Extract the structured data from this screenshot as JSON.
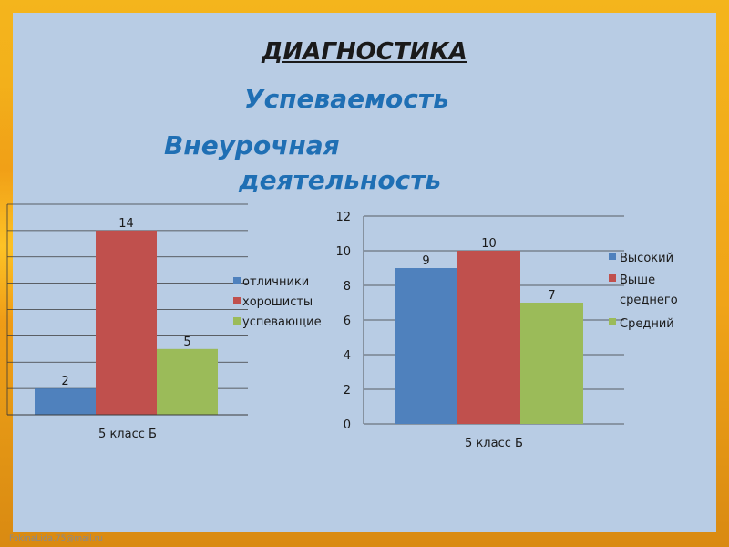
{
  "slide": {
    "title": "ДИАГНОСТИКА",
    "subtitle1": "Успеваемость",
    "subtitle2_line1": "Внеурочная",
    "subtitle2_line2": "деятельность",
    "footer": "FokinaLida.75@mail.ru"
  },
  "colors": {
    "blue": "#4f81bd",
    "red": "#c0504d",
    "green": "#9bbb59",
    "panel": "#b8cce4"
  },
  "chart_data": [
    {
      "type": "bar",
      "categories": [
        "5 класс Б"
      ],
      "series": [
        {
          "name": "отличники",
          "values": [
            2
          ]
        },
        {
          "name": "хорошисты",
          "values": [
            14
          ]
        },
        {
          "name": "успевающие",
          "values": [
            5
          ]
        }
      ],
      "data_labels": [
        "2",
        "14",
        "5"
      ],
      "ylim": [
        0,
        16
      ],
      "grid": true,
      "legend": "right"
    },
    {
      "type": "bar",
      "categories": [
        "5 класс Б"
      ],
      "series": [
        {
          "name": "Высокий",
          "values": [
            9
          ]
        },
        {
          "name": "Выше среднего",
          "values": [
            10
          ]
        },
        {
          "name": "Средний",
          "values": [
            7
          ]
        }
      ],
      "data_labels": [
        "9",
        "10",
        "7"
      ],
      "ylim": [
        0,
        12
      ],
      "yticks": [
        "0",
        "2",
        "4",
        "6",
        "8",
        "10",
        "12"
      ],
      "grid": true,
      "legend": "right"
    }
  ]
}
